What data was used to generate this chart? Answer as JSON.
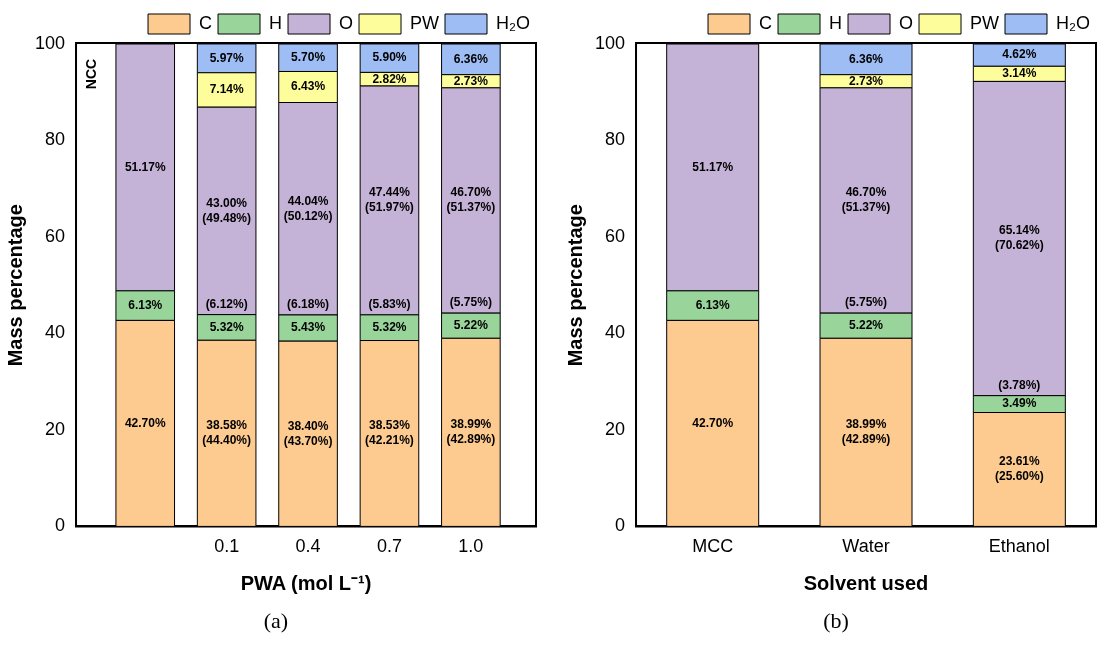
{
  "chart_data": [
    {
      "type": "bar",
      "stacked": true,
      "categories": [
        null,
        "0.1",
        "0.4",
        "0.7",
        "1.0"
      ],
      "xlabel": "PWA (mol L⁻¹)",
      "ylabel": "Mass percentage",
      "ylim": [
        0,
        100
      ],
      "yticks": [
        0,
        20,
        40,
        60,
        80,
        100
      ],
      "grid": false,
      "legend": "top",
      "annotations": [
        "(a)",
        "NCC"
      ],
      "series": [
        {
          "name": "C",
          "color": "#fdca8f",
          "values": [
            42.7,
            38.58,
            38.4,
            38.53,
            38.99
          ],
          "value_labels": [
            "42.70%",
            "38.58% (44.40%)",
            "38.40% (43.70%)",
            "38.53% (42.21%)",
            "38.99% (42.89%)"
          ]
        },
        {
          "name": "H",
          "color": "#99d59b",
          "values": [
            6.13,
            5.32,
            5.43,
            5.32,
            5.22
          ],
          "value_labels": [
            "6.13%",
            "5.32% (6.12%)",
            "5.43% (6.18%)",
            "5.32% (5.83%)",
            "5.22% (5.75%)"
          ]
        },
        {
          "name": "O",
          "color": "#c5b3d7",
          "values": [
            51.17,
            43.0,
            44.04,
            47.44,
            46.7
          ],
          "value_labels": [
            "51.17%",
            "43.00% (49.48%)",
            "44.04% (50.12%)",
            "47.44% (51.97%)",
            "46.70% (51.37%)"
          ]
        },
        {
          "name": "PW",
          "color": "#fefd9c",
          "values": [
            null,
            7.14,
            6.43,
            2.82,
            2.73
          ],
          "value_labels": [
            null,
            "7.14%",
            "6.43%",
            "2.82%",
            "2.73%"
          ]
        },
        {
          "name": "H₂O",
          "color": "#9dbdf4",
          "values": [
            null,
            5.97,
            5.7,
            5.9,
            6.36
          ],
          "value_labels": [
            null,
            "5.97%",
            "5.70%",
            "5.90%",
            "6.36%"
          ]
        }
      ]
    },
    {
      "type": "bar",
      "stacked": true,
      "categories": [
        "MCC",
        "Water",
        "Ethanol"
      ],
      "xlabel": "Solvent used",
      "ylabel": "Mass percentage",
      "ylim": [
        0,
        100
      ],
      "yticks": [
        0,
        20,
        40,
        60,
        80,
        100
      ],
      "grid": false,
      "legend": "top",
      "annotations": [
        "(b)"
      ],
      "series": [
        {
          "name": "C",
          "color": "#fdca8f",
          "values": [
            42.7,
            38.99,
            23.61
          ],
          "value_labels": [
            "42.70%",
            "38.99% (42.89%)",
            "23.61% (25.60%)"
          ]
        },
        {
          "name": "H",
          "color": "#99d59b",
          "values": [
            6.13,
            5.22,
            3.49
          ],
          "value_labels": [
            "6.13%",
            "5.22% (5.75%)",
            "3.49% (3.78%)"
          ]
        },
        {
          "name": "O",
          "color": "#c5b3d7",
          "values": [
            51.17,
            46.7,
            65.14
          ],
          "value_labels": [
            "51.17%",
            "46.70% (51.37%)",
            "65.14% (70.62%)"
          ]
        },
        {
          "name": "PW",
          "color": "#fefd9c",
          "values": [
            null,
            2.73,
            3.14
          ],
          "value_labels": [
            null,
            "2.73%",
            "3.14%"
          ]
        },
        {
          "name": "H₂O",
          "color": "#9dbdf4",
          "values": [
            null,
            6.36,
            4.62
          ],
          "value_labels": [
            null,
            "6.36%",
            "4.62%"
          ]
        }
      ]
    }
  ]
}
